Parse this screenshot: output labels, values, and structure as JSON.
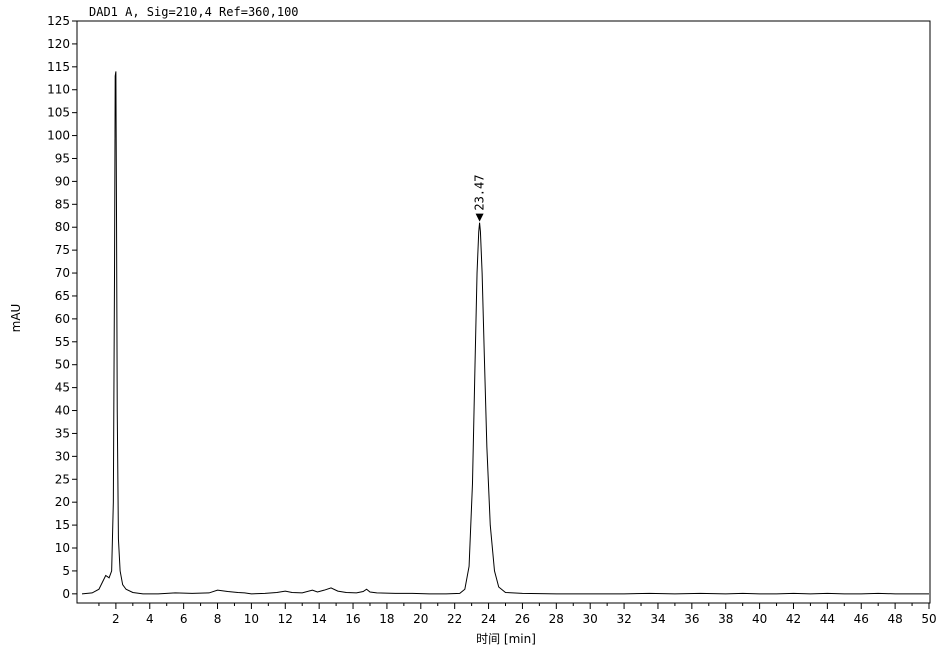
{
  "chart_data": {
    "type": "line",
    "title": "DAD1 A,  Sig=210,4 Ref=360,100",
    "xlabel": "时间 [min]",
    "ylabel": "mAU",
    "xlim": [
      0,
      50
    ],
    "ylim": [
      -2,
      125
    ],
    "x_ticks": [
      2,
      4,
      6,
      8,
      10,
      12,
      14,
      16,
      18,
      20,
      22,
      24,
      26,
      28,
      30,
      32,
      34,
      36,
      38,
      40,
      42,
      44,
      46,
      48,
      50
    ],
    "y_ticks": [
      0,
      5,
      10,
      15,
      20,
      25,
      30,
      35,
      40,
      45,
      50,
      55,
      60,
      65,
      70,
      75,
      80,
      85,
      90,
      95,
      100,
      105,
      110,
      115,
      120,
      125
    ],
    "grid": false,
    "series": [
      {
        "name": "",
        "x": [
          0.0,
          0.6,
          1.0,
          1.2,
          1.4,
          1.6,
          1.75,
          1.85,
          1.92,
          1.96,
          2.0,
          2.04,
          2.08,
          2.15,
          2.25,
          2.4,
          2.6,
          3.0,
          3.6,
          4.5,
          5.5,
          6.5,
          7.5,
          8.0,
          8.6,
          9.2,
          9.6,
          10.0,
          10.8,
          11.5,
          12.0,
          12.4,
          13.0,
          13.6,
          13.9,
          14.3,
          14.7,
          15.1,
          15.6,
          16.2,
          16.6,
          16.8,
          17.0,
          17.4,
          18.5,
          19.5,
          20.5,
          21.5,
          22.3,
          22.6,
          22.85,
          23.05,
          23.2,
          23.32,
          23.42,
          23.47,
          23.52,
          23.62,
          23.75,
          23.9,
          24.1,
          24.35,
          24.6,
          25.0,
          26.0,
          28.0,
          30.0,
          32.0,
          33.5,
          35.0,
          36.5,
          38.0,
          39.0,
          40.0,
          41.0,
          42.0,
          43.0,
          44.0,
          45.0,
          46.0,
          47.0,
          48.0,
          49.0,
          50.0
        ],
        "y": [
          0.0,
          0.2,
          1.0,
          2.5,
          4.0,
          3.5,
          5.0,
          20.0,
          70.0,
          113.0,
          114.0,
          80.0,
          40.0,
          12.0,
          5.0,
          2.0,
          1.0,
          0.3,
          0.0,
          0.0,
          0.2,
          0.1,
          0.2,
          0.8,
          0.5,
          0.3,
          0.2,
          0.0,
          0.1,
          0.3,
          0.6,
          0.3,
          0.2,
          0.8,
          0.4,
          0.8,
          1.3,
          0.6,
          0.3,
          0.2,
          0.5,
          1.0,
          0.4,
          0.2,
          0.1,
          0.1,
          0.0,
          0.0,
          0.1,
          1.0,
          6.0,
          24.0,
          50.0,
          70.0,
          79.0,
          81.0,
          79.0,
          70.0,
          52.0,
          32.0,
          15.0,
          5.0,
          1.5,
          0.3,
          0.1,
          0.0,
          0.0,
          0.0,
          0.1,
          0.0,
          0.1,
          0.0,
          0.1,
          0.0,
          0.0,
          0.1,
          0.0,
          0.1,
          0.0,
          0.0,
          0.1,
          0.0,
          0.0,
          0.0
        ]
      }
    ],
    "annotations": [
      {
        "x": 23.47,
        "y": 81.0,
        "text": "23.47",
        "marker": "triangle-down"
      }
    ]
  }
}
